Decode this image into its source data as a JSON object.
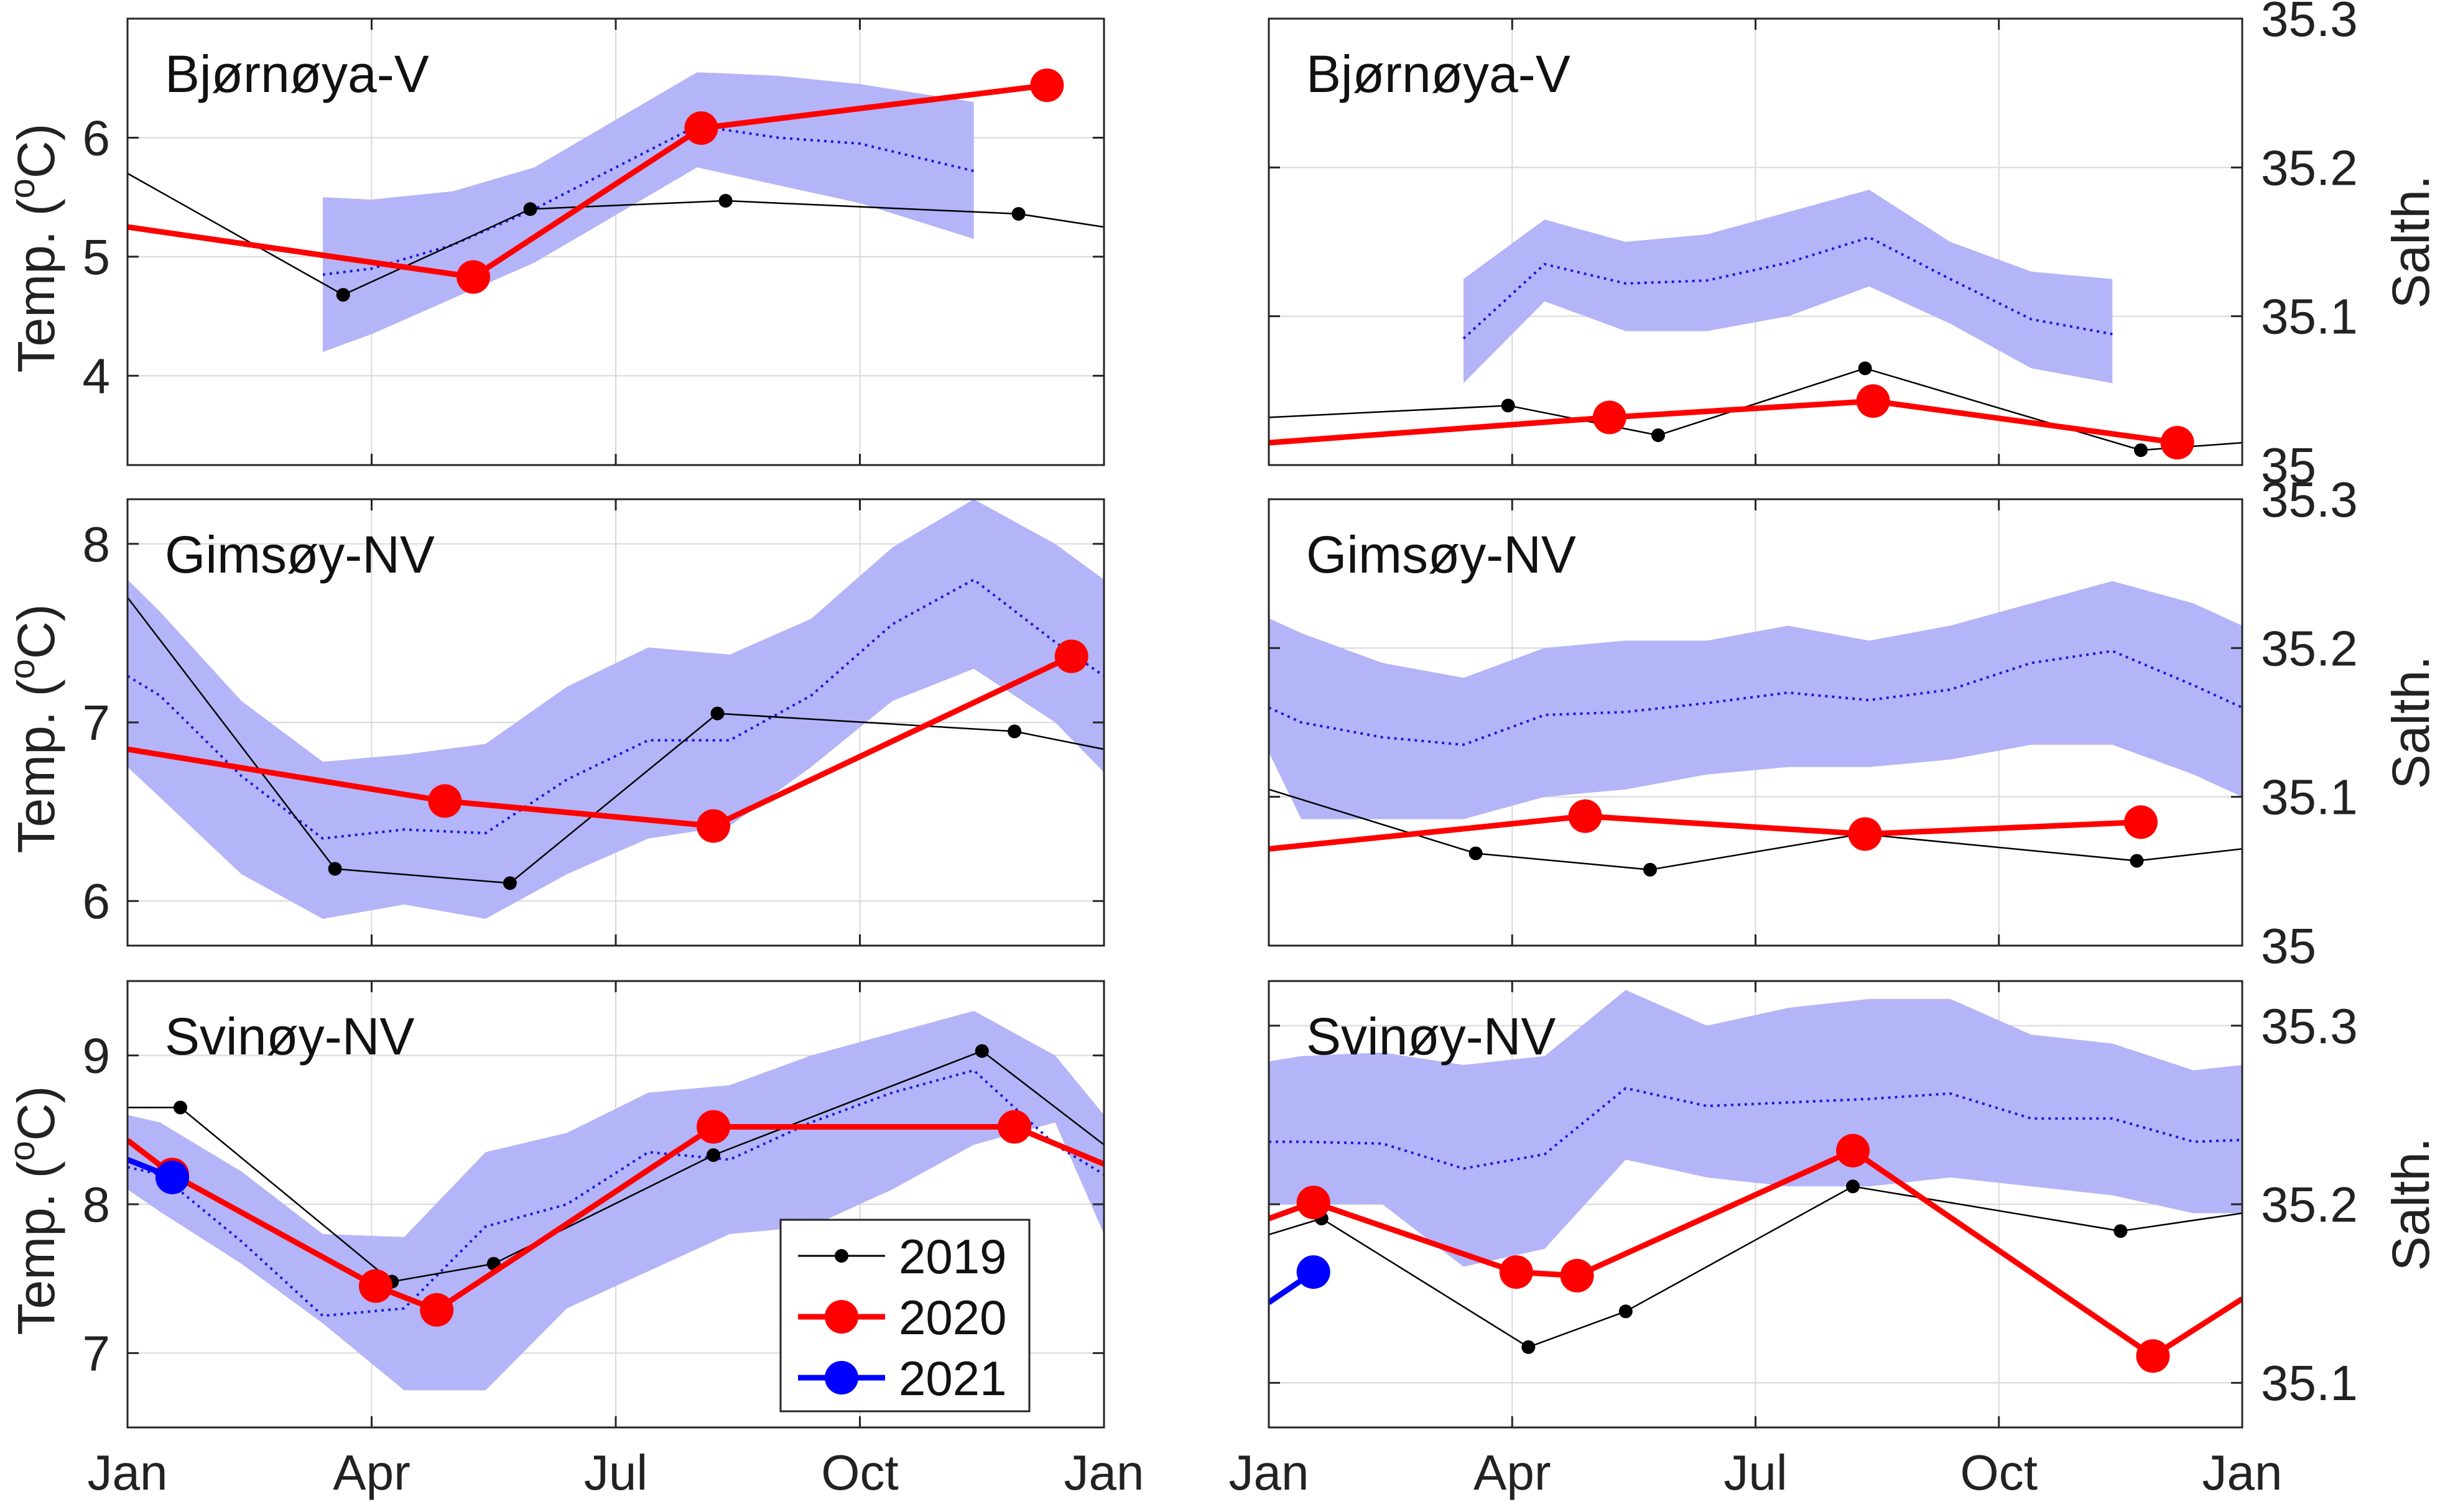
{
  "chart_data": [
    {
      "type": "line",
      "panel": "temperature",
      "title": "Bjørnøya-V",
      "ylabel": "Temp. ( oC)",
      "ylabel_main": "Temp. (",
      "ylabel_sup": "o",
      "ylabel_unit": "C)",
      "ylim": [
        3.25,
        7.0
      ],
      "yticks": [
        4,
        5,
        6
      ],
      "xlim": [
        0,
        12
      ],
      "xticks": [
        0,
        3,
        6,
        9,
        12
      ],
      "xticklabels": [
        "Jan",
        "Apr",
        "Jul",
        "Oct",
        "Jan"
      ],
      "grid": true,
      "band": {
        "x": [
          2.4,
          3.0,
          4.0,
          5.0,
          6.0,
          7.0,
          8.0,
          9.0,
          10.4
        ],
        "lower": [
          4.2,
          4.35,
          4.65,
          4.95,
          5.35,
          5.75,
          5.6,
          5.45,
          5.15
        ],
        "upper": [
          5.5,
          5.48,
          5.55,
          5.75,
          6.15,
          6.55,
          6.52,
          6.45,
          6.3
        ]
      },
      "climatology": {
        "x": [
          2.4,
          3.0,
          4.0,
          5.0,
          6.0,
          7.0,
          8.0,
          9.0,
          10.4
        ],
        "y": [
          4.85,
          4.9,
          5.1,
          5.4,
          5.75,
          6.1,
          6.0,
          5.95,
          5.72
        ]
      },
      "series": [
        {
          "name": "2019",
          "x": [
            0,
            2.65,
            4.95,
            7.35,
            10.95,
            12
          ],
          "y": [
            5.7,
            4.68,
            5.4,
            5.47,
            5.36,
            5.25
          ],
          "markers": [
            1,
            2,
            3,
            4
          ]
        },
        {
          "name": "2020",
          "x": [
            0,
            4.25,
            7.05,
            11.3
          ],
          "y": [
            5.25,
            4.83,
            6.08,
            6.44
          ],
          "markers": [
            1,
            2,
            3
          ]
        }
      ]
    },
    {
      "type": "line",
      "panel": "salinity",
      "title": "Bjørnøya-V",
      "ylabel": "Salth.",
      "yaxis_side": "right",
      "ylim": [
        35.0,
        35.3
      ],
      "yticks": [
        35.0,
        35.1,
        35.2,
        35.3
      ],
      "xlim": [
        0,
        12
      ],
      "xticks": [
        0,
        3,
        6,
        9,
        12
      ],
      "xticklabels": [
        "Jan",
        "Apr",
        "Jul",
        "Oct",
        "Jan"
      ],
      "grid": true,
      "band": {
        "x": [
          2.4,
          3.4,
          4.4,
          5.4,
          6.4,
          7.4,
          8.4,
          9.4,
          10.4
        ],
        "lower": [
          35.055,
          35.11,
          35.09,
          35.09,
          35.1,
          35.12,
          35.095,
          35.065,
          35.055
        ],
        "upper": [
          35.125,
          35.165,
          35.15,
          35.155,
          35.17,
          35.185,
          35.15,
          35.13,
          35.125
        ]
      },
      "climatology": {
        "x": [
          2.4,
          3.4,
          4.4,
          5.4,
          6.4,
          7.4,
          8.4,
          9.4,
          10.4
        ],
        "y": [
          35.085,
          35.135,
          35.122,
          35.124,
          35.136,
          35.153,
          35.125,
          35.098,
          35.088
        ]
      },
      "series": [
        {
          "name": "2019",
          "x": [
            0,
            2.95,
            4.8,
            7.35,
            10.75,
            12
          ],
          "y": [
            35.032,
            35.04,
            35.02,
            35.065,
            35.01,
            35.015
          ],
          "markers": [
            1,
            2,
            3,
            4
          ]
        },
        {
          "name": "2020",
          "x": [
            0,
            4.2,
            7.45,
            11.2
          ],
          "y": [
            35.015,
            35.032,
            35.043,
            35.015
          ],
          "markers": [
            1,
            2,
            3
          ]
        }
      ]
    },
    {
      "type": "line",
      "panel": "temperature",
      "title": "Gimsøy-NV",
      "ylabel": "Temp. ( oC)",
      "ylabel_main": "Temp. (",
      "ylabel_sup": "o",
      "ylabel_unit": "C)",
      "ylim": [
        5.75,
        8.25
      ],
      "yticks": [
        6,
        7,
        8
      ],
      "xlim": [
        0,
        12
      ],
      "xticks": [
        0,
        3,
        6,
        9,
        12
      ],
      "xticklabels": [
        "Jan",
        "Apr",
        "Jul",
        "Oct",
        "Jan"
      ],
      "grid": true,
      "band": {
        "x": [
          0,
          0.4,
          1.4,
          2.4,
          3.4,
          4.4,
          5.4,
          6.4,
          7.4,
          8.4,
          9.4,
          10.4,
          11.4,
          12
        ],
        "lower": [
          6.75,
          6.58,
          6.15,
          5.9,
          5.98,
          5.9,
          6.15,
          6.35,
          6.42,
          6.75,
          7.12,
          7.3,
          7.0,
          6.72
        ],
        "upper": [
          7.8,
          7.62,
          7.12,
          6.78,
          6.82,
          6.88,
          7.2,
          7.42,
          7.38,
          7.58,
          7.98,
          8.25,
          8.0,
          7.8
        ]
      },
      "climatology": {
        "x": [
          0,
          0.4,
          1.4,
          2.4,
          3.4,
          4.4,
          5.4,
          6.4,
          7.4,
          8.4,
          9.4,
          10.4,
          11.4,
          12
        ],
        "y": [
          7.26,
          7.15,
          6.7,
          6.35,
          6.4,
          6.38,
          6.68,
          6.9,
          6.9,
          7.15,
          7.55,
          7.8,
          7.45,
          7.26
        ]
      },
      "series": [
        {
          "name": "2019",
          "x": [
            0,
            2.55,
            4.7,
            7.25,
            10.9,
            12
          ],
          "y": [
            7.7,
            6.18,
            6.1,
            7.05,
            6.95,
            6.85
          ],
          "markers": [
            1,
            2,
            3,
            4
          ]
        },
        {
          "name": "2020",
          "x": [
            0,
            3.9,
            7.2,
            11.6
          ],
          "y": [
            6.85,
            6.56,
            6.42,
            7.37
          ],
          "markers": [
            1,
            2,
            3
          ]
        }
      ]
    },
    {
      "type": "line",
      "panel": "salinity",
      "title": "Gimsøy-NV",
      "ylabel": "Salth.",
      "yaxis_side": "right",
      "ylim": [
        35.0,
        35.3
      ],
      "yticks": [
        35.0,
        35.1,
        35.2,
        35.3
      ],
      "xlim": [
        0,
        12
      ],
      "xticks": [
        0,
        3,
        6,
        9,
        12
      ],
      "xticklabels": [
        "Jan",
        "Apr",
        "Jul",
        "Oct",
        "Jan"
      ],
      "grid": true,
      "band": {
        "x": [
          0,
          0.4,
          1.4,
          2.4,
          3.4,
          4.4,
          5.4,
          6.4,
          7.4,
          8.4,
          9.4,
          10.4,
          11.4,
          12
        ],
        "lower": [
          35.13,
          35.085,
          35.085,
          35.085,
          35.1,
          35.105,
          35.115,
          35.12,
          35.12,
          35.125,
          35.135,
          35.135,
          35.115,
          35.1
        ],
        "upper": [
          35.22,
          35.21,
          35.19,
          35.18,
          35.2,
          35.205,
          35.205,
          35.215,
          35.205,
          35.215,
          35.23,
          35.245,
          35.23,
          35.215
        ]
      },
      "climatology": {
        "x": [
          0,
          0.4,
          1.4,
          2.4,
          3.4,
          4.4,
          5.4,
          6.4,
          7.4,
          8.4,
          9.4,
          10.4,
          11.4,
          12
        ],
        "y": [
          35.16,
          35.15,
          35.14,
          35.135,
          35.155,
          35.157,
          35.163,
          35.17,
          35.165,
          35.172,
          35.19,
          35.198,
          35.175,
          35.16
        ]
      },
      "series": [
        {
          "name": "2019",
          "x": [
            0,
            2.55,
            4.7,
            7.3,
            10.7,
            12
          ],
          "y": [
            35.105,
            35.062,
            35.051,
            35.075,
            35.057,
            35.065
          ],
          "markers": [
            1,
            2,
            3,
            4
          ]
        },
        {
          "name": "2020",
          "x": [
            0,
            3.9,
            7.35,
            10.75
          ],
          "y": [
            35.065,
            35.087,
            35.075,
            35.083
          ],
          "markers": [
            1,
            2,
            3
          ]
        }
      ]
    },
    {
      "type": "line",
      "panel": "temperature",
      "title": "Svinøy-NV",
      "ylabel": "Temp. ( oC)",
      "ylabel_main": "Temp. (",
      "ylabel_sup": "o",
      "ylabel_unit": "C)",
      "ylim": [
        6.5,
        9.5
      ],
      "yticks": [
        7,
        8,
        9
      ],
      "xlim": [
        0,
        12
      ],
      "xticks": [
        0,
        3,
        6,
        9,
        12
      ],
      "xticklabels": [
        "Jan",
        "Apr",
        "Jul",
        "Oct",
        "Jan"
      ],
      "grid": true,
      "band": {
        "x": [
          0,
          0.4,
          1.4,
          2.4,
          3.4,
          4.4,
          5.4,
          6.4,
          7.4,
          8.4,
          9.4,
          10.4,
          11.4,
          12
        ],
        "lower": [
          8.1,
          7.95,
          7.6,
          7.2,
          6.75,
          6.75,
          7.3,
          7.55,
          7.8,
          7.85,
          8.1,
          8.4,
          8.55,
          7.8
        ],
        "upper": [
          8.6,
          8.55,
          8.22,
          7.8,
          7.78,
          8.35,
          8.48,
          8.75,
          8.8,
          9.0,
          9.15,
          9.3,
          9.0,
          8.6
        ]
      },
      "climatology": {
        "x": [
          0,
          0.4,
          1.4,
          2.4,
          3.4,
          4.4,
          5.4,
          6.4,
          7.4,
          8.4,
          9.4,
          10.4,
          11.4,
          12
        ],
        "y": [
          8.25,
          8.2,
          7.75,
          7.25,
          7.3,
          7.85,
          8.0,
          8.35,
          8.3,
          8.55,
          8.75,
          8.9,
          8.4,
          8.2
        ]
      },
      "series": [
        {
          "name": "2019",
          "x": [
            0,
            0.65,
            3.25,
            4.5,
            7.2,
            10.5,
            12
          ],
          "y": [
            8.65,
            8.65,
            7.48,
            7.6,
            8.33,
            9.03,
            8.4
          ],
          "markers": [
            1,
            2,
            3,
            4,
            5
          ]
        },
        {
          "name": "2020",
          "x": [
            0,
            0.55,
            3.05,
            3.8,
            7.2,
            10.9,
            12
          ],
          "y": [
            8.43,
            8.2,
            7.45,
            7.29,
            8.52,
            8.52,
            8.27
          ],
          "markers": [
            1,
            2,
            3,
            4,
            5
          ]
        },
        {
          "name": "2021",
          "x": [
            0,
            0.55
          ],
          "y": [
            8.3,
            8.18
          ],
          "markers": [
            1
          ]
        }
      ],
      "legend": {
        "placement": "bottom-right",
        "entries": [
          "2019",
          "2020",
          "2021"
        ]
      }
    },
    {
      "type": "line",
      "panel": "salinity",
      "title": "Svinøy-NV",
      "ylabel": "Salth.",
      "yaxis_side": "right",
      "ylim": [
        35.075,
        35.325
      ],
      "yticks": [
        35.1,
        35.2,
        35.3
      ],
      "xlim": [
        0,
        12
      ],
      "xticks": [
        0,
        3,
        6,
        9,
        12
      ],
      "xticklabels": [
        "Jan",
        "Apr",
        "Jul",
        "Oct",
        "Jan"
      ],
      "grid": true,
      "band": {
        "x": [
          0,
          0.4,
          1.4,
          2.4,
          3.4,
          4.4,
          5.4,
          6.4,
          7.4,
          8.4,
          9.4,
          10.4,
          11.4,
          12
        ],
        "lower": [
          35.2,
          35.2,
          35.2,
          35.165,
          35.175,
          35.225,
          35.215,
          35.21,
          35.21,
          35.215,
          35.21,
          35.205,
          35.195,
          35.195
        ],
        "upper": [
          35.28,
          35.283,
          35.285,
          35.278,
          35.283,
          35.32,
          35.3,
          35.31,
          35.315,
          35.315,
          35.295,
          35.29,
          35.275,
          35.278
        ]
      },
      "climatology": {
        "x": [
          0,
          0.4,
          1.4,
          2.4,
          3.4,
          4.4,
          5.4,
          6.4,
          7.4,
          8.4,
          9.4,
          10.4,
          11.4,
          12
        ],
        "y": [
          35.235,
          35.235,
          35.234,
          35.22,
          35.228,
          35.265,
          35.255,
          35.257,
          35.259,
          35.262,
          35.248,
          35.248,
          35.235,
          35.236
        ]
      },
      "series": [
        {
          "name": "2019",
          "x": [
            0,
            0.65,
            3.2,
            4.4,
            7.2,
            10.5,
            12
          ],
          "y": [
            35.183,
            35.192,
            35.12,
            35.14,
            35.21,
            35.185,
            35.195
          ],
          "markers": [
            1,
            2,
            3,
            4,
            5
          ]
        },
        {
          "name": "2020",
          "x": [
            0,
            0.55,
            3.05,
            3.8,
            7.2,
            10.9,
            12
          ],
          "y": [
            35.192,
            35.201,
            35.162,
            35.16,
            35.23,
            35.115,
            35.147
          ],
          "markers": [
            1,
            2,
            3,
            4,
            5
          ]
        },
        {
          "name": "2021",
          "x": [
            0,
            0.55
          ],
          "y": [
            35.145,
            35.162
          ],
          "markers": [
            1
          ]
        }
      ]
    }
  ],
  "legend": {
    "entries": [
      {
        "name": "2019",
        "color": "#000000"
      },
      {
        "name": "2020",
        "color": "#ff0000"
      },
      {
        "name": "2021",
        "color": "#0000ff"
      }
    ]
  },
  "colors": {
    "2019": "#000000",
    "2020": "#ff0000",
    "2021": "#0000ff",
    "band": "#b4b4f8",
    "climatology": "#1a1ad8",
    "grid": "#d8d8d8"
  }
}
